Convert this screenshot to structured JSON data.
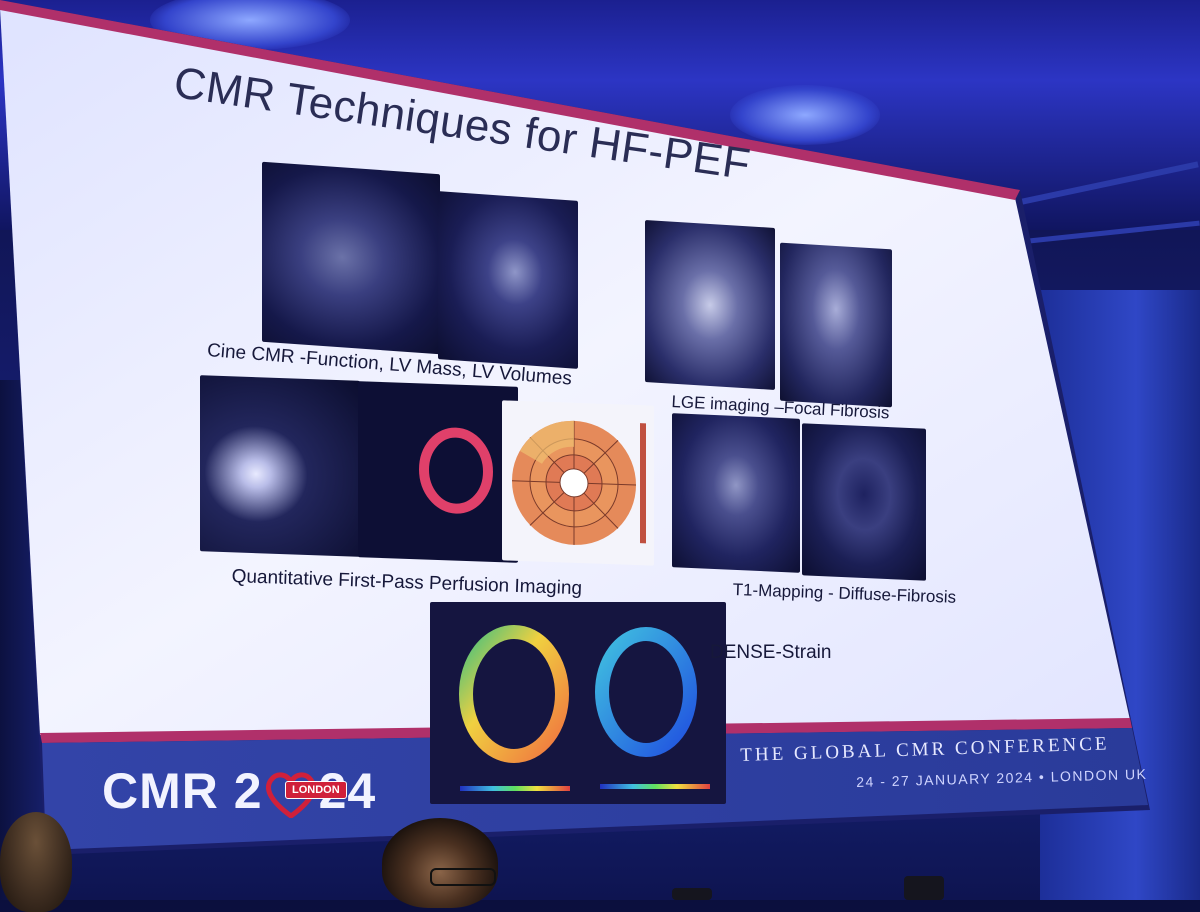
{
  "slide": {
    "title": "CMR Techniques for HF-PEF",
    "panels": [
      {
        "id": "cine",
        "caption": "Cine CMR -Function, LV Mass, LV Volumes"
      },
      {
        "id": "lge",
        "caption": "LGE imaging –Focal Fibrosis"
      },
      {
        "id": "perfusion",
        "caption": "Quantitative First-Pass Perfusion Imaging"
      },
      {
        "id": "t1",
        "caption": "T1-Mapping - Diffuse-Fibrosis"
      },
      {
        "id": "dense",
        "caption": "DENSE-Strain"
      }
    ]
  },
  "footer": {
    "logo_left": "CMR 2",
    "logo_right": "24",
    "logo_badge": "LONDON",
    "conference": "THE GLOBAL CMR CONFERENCE",
    "date_location": "24 - 27 JANUARY 2024  •  LONDON UK"
  },
  "colors": {
    "slide_bg": "#eef0ff",
    "accent_bar": "#b0306a",
    "footer_bg": "#2d3d9a",
    "title_text": "#2a2d55"
  }
}
